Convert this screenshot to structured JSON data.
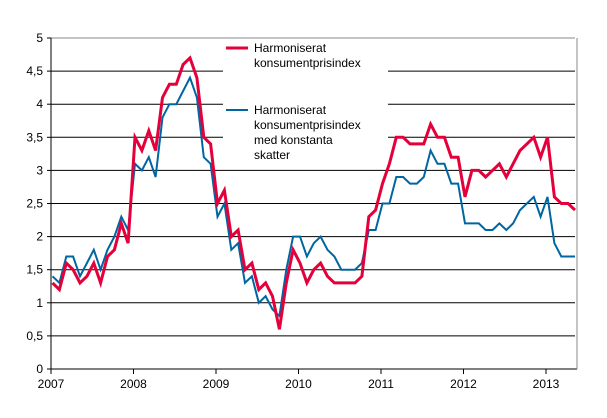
{
  "chart_data": {
    "type": "line",
    "title": "",
    "xlabel": "",
    "ylabel": "",
    "ylim": [
      0,
      5
    ],
    "y_ticks": [
      "0",
      "0,5",
      "1",
      "1,5",
      "2",
      "2,5",
      "3",
      "3,5",
      "4",
      "4,5",
      "5"
    ],
    "x_ticks": [
      "2007",
      "2008",
      "2009",
      "2010",
      "2011",
      "2012",
      "2013"
    ],
    "x_start": "2007-01",
    "x_frequency": "monthly",
    "grid": "horizontal",
    "legend_placement": "top-center",
    "series": [
      {
        "name": "Harmoniserat konsumentprisindex",
        "color": "#e4003a",
        "values": [
          1.3,
          1.2,
          1.6,
          1.5,
          1.3,
          1.4,
          1.6,
          1.3,
          1.7,
          1.8,
          2.2,
          1.9,
          3.5,
          3.3,
          3.6,
          3.3,
          4.1,
          4.3,
          4.3,
          4.6,
          4.7,
          4.4,
          3.5,
          3.4,
          2.5,
          2.7,
          2.0,
          2.1,
          1.5,
          1.6,
          1.2,
          1.3,
          1.1,
          0.6,
          1.3,
          1.8,
          1.6,
          1.3,
          1.5,
          1.6,
          1.4,
          1.3,
          1.3,
          1.3,
          1.3,
          1.4,
          2.3,
          2.4,
          2.8,
          3.1,
          3.5,
          3.5,
          3.4,
          3.4,
          3.4,
          3.7,
          3.5,
          3.5,
          3.2,
          3.2,
          2.6,
          3.0,
          3.0,
          2.9,
          3.0,
          3.1,
          2.9,
          3.1,
          3.3,
          3.4,
          3.5,
          3.2,
          3.5,
          2.6,
          2.5,
          2.5,
          2.4
        ]
      },
      {
        "name": "Harmoniserat konsumentprisindex med konstanta skatter",
        "color": "#0066a1",
        "values": [
          1.4,
          1.3,
          1.7,
          1.7,
          1.4,
          1.6,
          1.8,
          1.5,
          1.8,
          2.0,
          2.3,
          2.1,
          3.1,
          3.0,
          3.2,
          2.9,
          3.8,
          4.0,
          4.0,
          4.2,
          4.4,
          4.1,
          3.2,
          3.1,
          2.3,
          2.5,
          1.8,
          1.9,
          1.3,
          1.4,
          1.0,
          1.1,
          0.9,
          0.8,
          1.5,
          2.0,
          2.0,
          1.7,
          1.9,
          2.0,
          1.8,
          1.7,
          1.5,
          1.5,
          1.5,
          1.6,
          2.1,
          2.1,
          2.5,
          2.5,
          2.9,
          2.9,
          2.8,
          2.8,
          2.9,
          3.3,
          3.1,
          3.1,
          2.8,
          2.8,
          2.2,
          2.2,
          2.2,
          2.1,
          2.1,
          2.2,
          2.1,
          2.2,
          2.4,
          2.5,
          2.6,
          2.3,
          2.6,
          1.9,
          1.7,
          1.7,
          1.7
        ]
      }
    ],
    "legend": {
      "red_lines": [
        "Harmoniserat",
        "konsumentprisindex"
      ],
      "blue_lines": [
        "Harmoniserat",
        "konsumentprisindex",
        "med konstanta",
        "skatter"
      ]
    }
  }
}
